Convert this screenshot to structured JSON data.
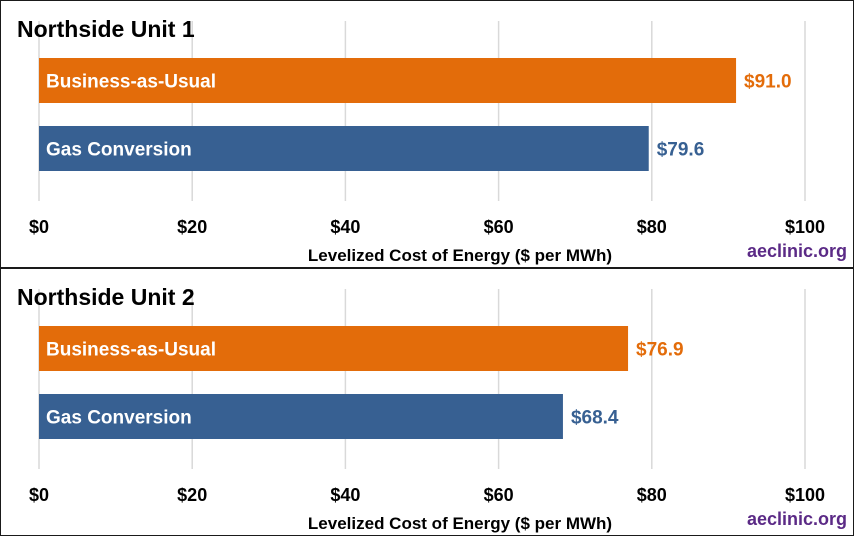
{
  "colors": {
    "business_as_usual": "#e36c0a",
    "gas_conversion": "#376092",
    "credit": "#5b2a86",
    "grid": "#d9d9d9"
  },
  "chart_data": [
    {
      "type": "bar",
      "orientation": "horizontal",
      "title": "Northside Unit 1",
      "xlabel": "Levelized Cost of Energy ($ per MWh)",
      "ylabel": "",
      "xlim": [
        0,
        100
      ],
      "ticks": [
        "$0",
        "$20",
        "$40",
        "$60",
        "$80",
        "$100"
      ],
      "grid": true,
      "credit": "aeclinic.org",
      "categories": [
        "Business-as-Usual",
        "Gas Conversion"
      ],
      "values": [
        91.0,
        79.6
      ],
      "value_labels": [
        "$91.0",
        "$79.6"
      ]
    },
    {
      "type": "bar",
      "orientation": "horizontal",
      "title": "Northside Unit 2",
      "xlabel": "Levelized Cost of Energy ($ per MWh)",
      "ylabel": "",
      "xlim": [
        0,
        100
      ],
      "ticks": [
        "$0",
        "$20",
        "$40",
        "$60",
        "$80",
        "$100"
      ],
      "grid": true,
      "credit": "aeclinic.org",
      "categories": [
        "Business-as-Usual",
        "Gas Conversion"
      ],
      "values": [
        76.9,
        68.4
      ],
      "value_labels": [
        "$76.9",
        "$68.4"
      ]
    }
  ]
}
